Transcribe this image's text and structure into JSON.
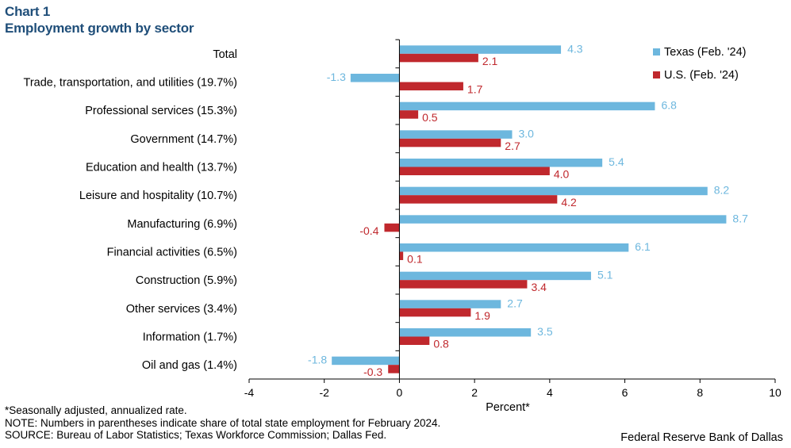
{
  "header": {
    "title_line1": "Chart 1",
    "title_line2": "Employment growth by sector"
  },
  "chart_data": {
    "type": "bar",
    "orientation": "horizontal",
    "title": "Employment growth by sector",
    "xlabel": "Percent*",
    "ylabel": "",
    "xlim": [
      -4,
      10
    ],
    "xticks": [
      -4,
      -2,
      0,
      2,
      4,
      6,
      8,
      10
    ],
    "legend_position": "top-right",
    "categories": [
      "Total",
      "Trade, transportation, and utilities (19.7%)",
      "Professional services (15.3%)",
      "Government (14.7%)",
      "Education and health (13.7%)",
      "Leisure and hospitality (10.7%)",
      "Manufacturing (6.9%)",
      "Financial activities (6.5%)",
      "Construction (5.9%)",
      "Other services (3.4%)",
      "Information (1.7%)",
      "Oil and gas (1.4%)"
    ],
    "series": [
      {
        "name": "Texas (Feb. '24)",
        "color": "#6db7de",
        "values": [
          4.3,
          -1.3,
          6.8,
          3.0,
          5.4,
          8.2,
          8.7,
          6.1,
          5.1,
          2.7,
          3.5,
          -1.8
        ],
        "labels": [
          "4.3",
          "-1.3",
          "6.8",
          "3.0",
          "5.4",
          "8.2",
          "8.7",
          "6.1",
          "5.1",
          "2.7",
          "3.5",
          "-1.8"
        ]
      },
      {
        "name": "U.S. (Feb. '24)",
        "color": "#c0282d",
        "values": [
          2.1,
          1.7,
          0.5,
          2.7,
          4.0,
          4.2,
          -0.4,
          0.1,
          3.4,
          1.9,
          0.8,
          -0.3
        ],
        "labels": [
          "2.1",
          "1.7",
          "0.5",
          "2.7",
          "4.0",
          "4.2",
          "-0.4",
          "0.1",
          "3.4",
          "1.9",
          "0.8",
          "-0.3"
        ]
      }
    ]
  },
  "notes": {
    "line1": "*Seasonally adjusted, annualized rate.",
    "line2": "NOTE: Numbers in parentheses indicate share of total state employment for February 2024.",
    "line3": "SOURCE: Bureau of Labor Statistics; Texas Workforce Commission; Dallas Fed."
  },
  "credit": "Federal Reserve Bank of Dallas"
}
